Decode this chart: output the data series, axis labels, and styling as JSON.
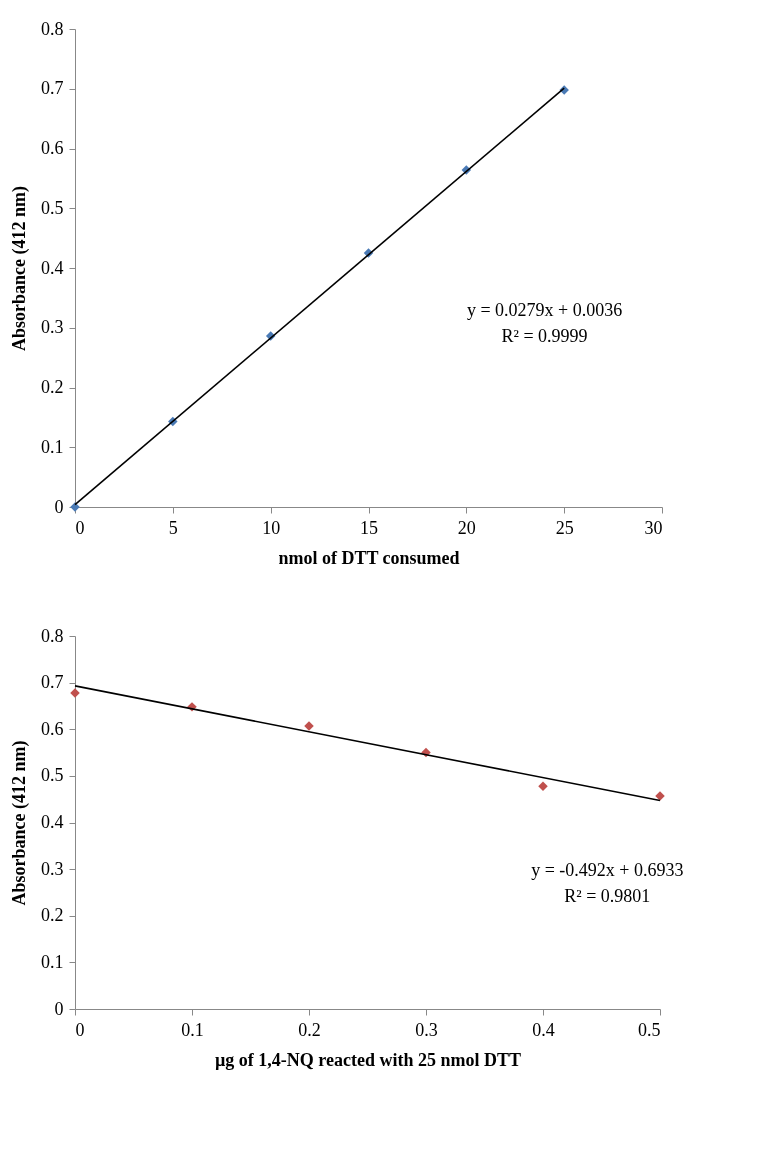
{
  "chart_data": [
    {
      "type": "scatter",
      "xlabel": "nmol of DTT consumed",
      "ylabel": "Absorbance (412 nm)",
      "xlim": [
        0,
        30
      ],
      "ylim": [
        0,
        0.8
      ],
      "xticks": [
        0,
        5,
        10,
        15,
        20,
        25,
        30
      ],
      "yticks": [
        0,
        0.1,
        0.2,
        0.3,
        0.4,
        0.5,
        0.6,
        0.7,
        0.8
      ],
      "marker": "diamond",
      "grid": false,
      "annotations": [
        "y = 0.0279x + 0.0036",
        "R² = 0.9999"
      ],
      "series": [
        {
          "color": "#4a7ab5",
          "x": [
            0,
            5,
            10,
            15,
            20,
            25
          ],
          "values": [
            0,
            0.143,
            0.286,
            0.425,
            0.564,
            0.698
          ]
        },
        {
          "type": "line",
          "color": "#000000",
          "marker": "none",
          "x": [
            0,
            25
          ],
          "values": [
            0.004,
            0.701
          ]
        }
      ]
    },
    {
      "type": "scatter",
      "xlabel": "µg of 1,4-NQ reacted with 25 nmol DTT",
      "ylabel": "Absorbance (412 nm)",
      "xlim": [
        0,
        0.5
      ],
      "ylim": [
        0,
        0.8
      ],
      "xticks": [
        0,
        0.1,
        0.2,
        0.3,
        0.4,
        0.5
      ],
      "yticks": [
        0,
        0.1,
        0.2,
        0.3,
        0.4,
        0.5,
        0.6,
        0.7,
        0.8
      ],
      "marker": "diamond",
      "grid": false,
      "annotations": [
        "y = -0.492x + 0.6933",
        "R² = 0.9801"
      ],
      "series": [
        {
          "color": "#c0504d",
          "x": [
            0,
            0.1,
            0.2,
            0.3,
            0.4,
            0.5
          ],
          "values": [
            0.678,
            0.648,
            0.607,
            0.55,
            0.478,
            0.457
          ]
        },
        {
          "type": "line",
          "color": "#000000",
          "marker": "none",
          "x": [
            0,
            0.5
          ],
          "values": [
            0.693,
            0.447
          ]
        }
      ]
    }
  ]
}
